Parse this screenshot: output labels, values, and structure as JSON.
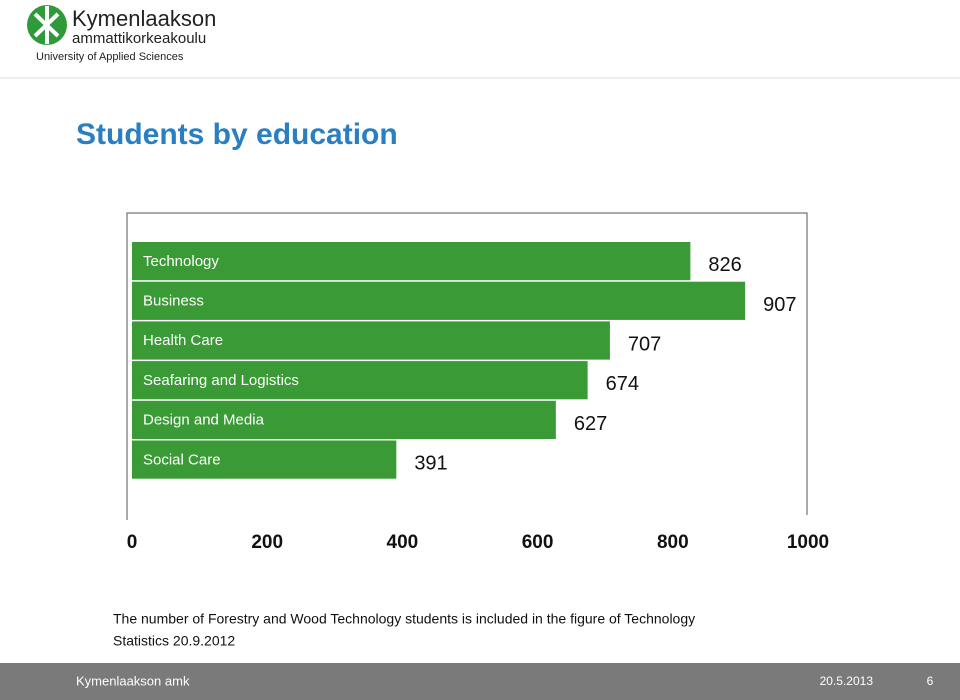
{
  "header": {
    "logo_line1": "Kymenlaakson",
    "logo_line2": "ammattikorkeakoulu",
    "logo_line3": "University of Applied Sciences"
  },
  "chart_data": {
    "type": "bar",
    "orientation": "horizontal",
    "title": "Students by education",
    "categories": [
      "Technology",
      "Business",
      "Health Care",
      "Seafaring and Logistics",
      "Design and Media",
      "Social Care"
    ],
    "values": [
      826,
      907,
      707,
      674,
      627,
      391
    ],
    "color": "#3a9a35",
    "xlim": [
      0,
      1000
    ],
    "xticks": [
      0,
      200,
      400,
      600,
      800,
      1000
    ],
    "grid": false
  },
  "note": {
    "line1": "The number of Forestry and Wood Technology students is included in the figure of Technology",
    "line2": "Statistics 20.9.2012"
  },
  "footer": {
    "left": "Kymenlaakson amk",
    "date": "20.5.2013",
    "page": "6"
  }
}
